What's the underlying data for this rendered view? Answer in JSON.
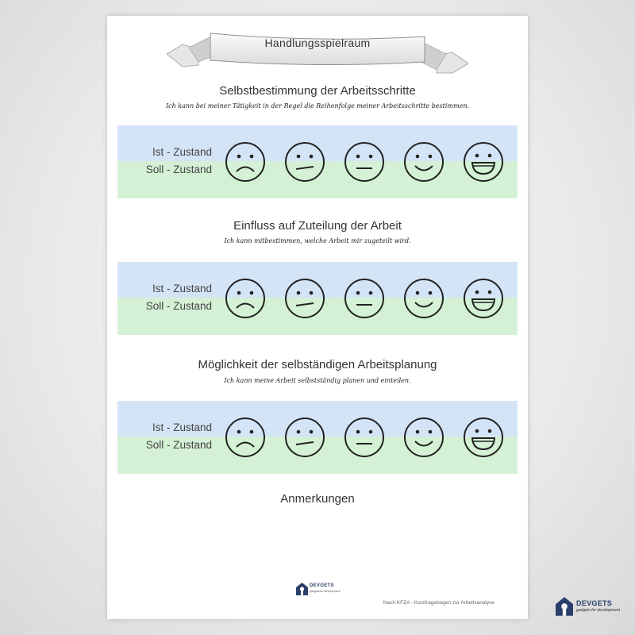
{
  "header": {
    "title": "Handlungsspielraum"
  },
  "sections": [
    {
      "title": "Selbstbestimmung der Arbeitsschritte",
      "subtitle": "Ich kann bei meiner Tätigkeit in der Regel die Reihenfolge meiner Arbeitsschritte bestimmen.",
      "ist_label": "Ist - Zustand",
      "soll_label": "Soll - Zustand"
    },
    {
      "title": "Einfluss auf Zuteilung der Arbeit",
      "subtitle": "Ich kann mitbestimmen, welche Arbeit mir zugeteilt wird.",
      "ist_label": "Ist - Zustand",
      "soll_label": "Soll - Zustand"
    },
    {
      "title": "Möglichkeit der selbständigen Arbeitsplanung",
      "subtitle": "Ich kann meine Arbeit selbstständig planen und einteilen.",
      "ist_label": "Ist - Zustand",
      "soll_label": "Soll - Zustand"
    }
  ],
  "faces": [
    "sad-face-icon",
    "slightly-sad-face-icon",
    "neutral-face-icon",
    "smile-face-icon",
    "grin-face-icon"
  ],
  "notes_label": "Anmerkungen",
  "footer": {
    "logo_name": "DEVGETS",
    "logo_tagline": "gadgets for development",
    "source_note": "Nach KFZA - Kurzfragebogen zur Arbeitsanalyse"
  },
  "colors": {
    "ist_band": "#d3e4f7",
    "soll_band": "#d4f1d6",
    "brand": "#2b3f6c"
  }
}
